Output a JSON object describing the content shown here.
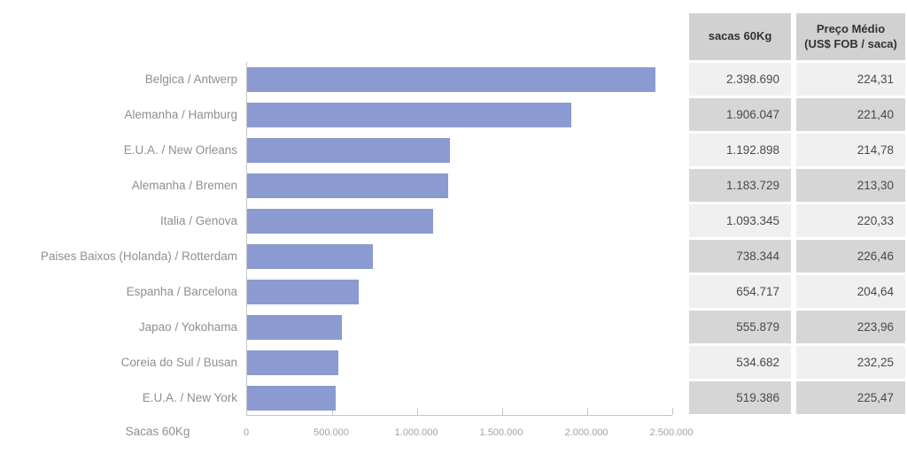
{
  "page": {
    "background": "#ffffff"
  },
  "chart_data": {
    "type": "bar",
    "orientation": "horizontal",
    "title": "",
    "xlabel": "Sacas 60Kg",
    "ylabel": "",
    "categories": [
      "Belgica / Antwerp",
      "Alemanha / Hamburg",
      "E.U.A. / New Orleans",
      "Alemanha / Bremen",
      "Italia / Genova",
      "Paises Baixos (Holanda) / Rotterdam",
      "Espanha / Barcelona",
      "Japao / Yokohama",
      "Coreia do Sul / Busan",
      "E.U.A. / New York"
    ],
    "values": [
      2398690,
      1906047,
      1192898,
      1183729,
      1093345,
      738344,
      654717,
      555879,
      534682,
      519386
    ],
    "xlim": [
      0,
      2500000
    ],
    "x_tick_values": [
      0,
      500000,
      1000000,
      1500000,
      2000000,
      2500000
    ],
    "x_tick_labels": [
      "0",
      "500.000",
      "1.000.000",
      "1.500.000",
      "2.000.000",
      "2.500.000"
    ],
    "grid": false,
    "legend": false,
    "colors": {
      "bar": "#8b9bd1",
      "axis_line": "#c6c6c6",
      "category_label": "#8f8f8f",
      "tick_label": "#a3a3a3"
    }
  },
  "table": {
    "header": {
      "col1": "sacas 60Kg",
      "col2_line1": "Preço Médio",
      "col2_line2": "(US$ FOB / saca)"
    },
    "rows": [
      {
        "sacas": "2.398.690",
        "preco": "224,31"
      },
      {
        "sacas": "1.906.047",
        "preco": "221,40"
      },
      {
        "sacas": "1.192.898",
        "preco": "214,78"
      },
      {
        "sacas": "1.183.729",
        "preco": "213,30"
      },
      {
        "sacas": "1.093.345",
        "preco": "220,33"
      },
      {
        "sacas": "738.344",
        "preco": "226,46"
      },
      {
        "sacas": "654.717",
        "preco": "204,64"
      },
      {
        "sacas": "555.879",
        "preco": "223,96"
      },
      {
        "sacas": "534.682",
        "preco": "232,25"
      },
      {
        "sacas": "519.386",
        "preco": "225,47"
      }
    ],
    "colors": {
      "header_bg": "#d1d1d1",
      "row_light": "#f0f0f0",
      "row_dark": "#d6d6d6",
      "text": "#4a4a4a",
      "header_text": "#333333"
    }
  }
}
